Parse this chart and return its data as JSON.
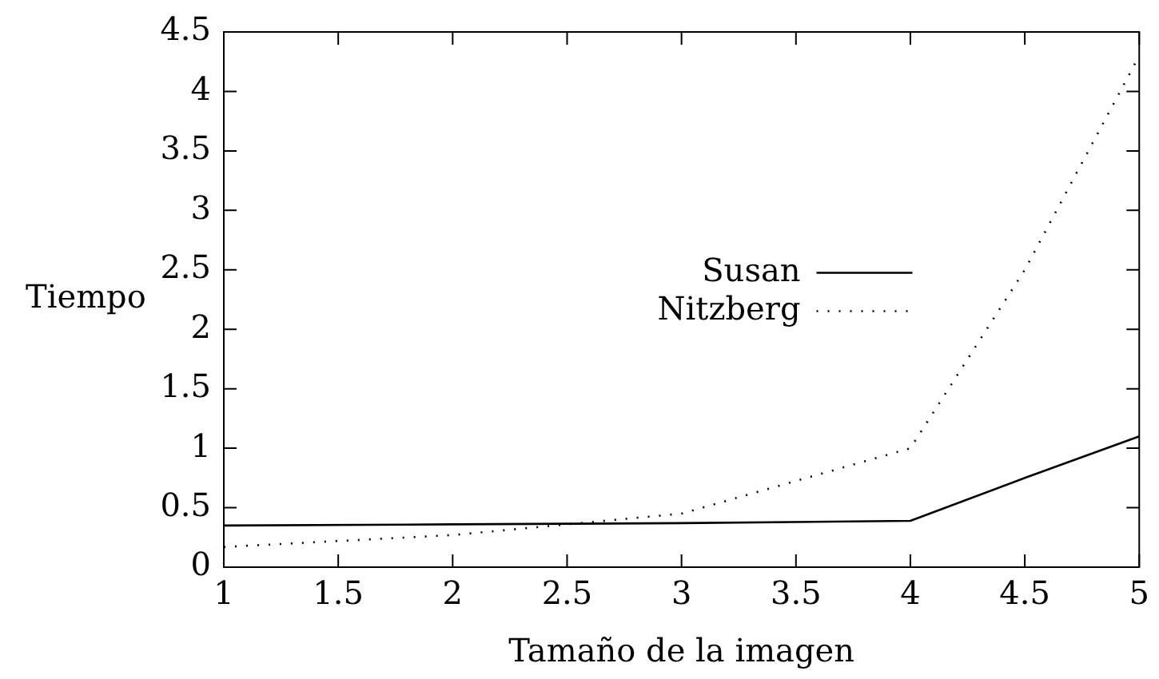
{
  "chart_data": {
    "type": "line",
    "xlabel": "Tamaño de la imagen",
    "ylabel": "Tiempo",
    "xlim": [
      1,
      5
    ],
    "xticks": [
      1,
      1.5,
      2,
      2.5,
      3,
      3.5,
      4,
      4.5,
      5
    ],
    "ylim": [
      0,
      4.5
    ],
    "yticks": [
      0,
      0.5,
      1,
      1.5,
      2,
      2.5,
      3,
      3.5,
      4,
      4.5
    ],
    "x": [
      1,
      2,
      3,
      4,
      4.5,
      5
    ],
    "series": [
      {
        "name": "Susan",
        "color": "#000000",
        "line_style": "solid",
        "values": [
          0.35,
          0.36,
          0.37,
          0.39,
          0.75,
          1.1
        ]
      },
      {
        "name": "Nitzberg",
        "color": "#000000",
        "line_style": "dotted",
        "values": [
          0.17,
          0.27,
          0.45,
          1.0,
          2.5,
          4.3
        ]
      }
    ],
    "grid": false,
    "legend": "right",
    "marker": "none"
  }
}
